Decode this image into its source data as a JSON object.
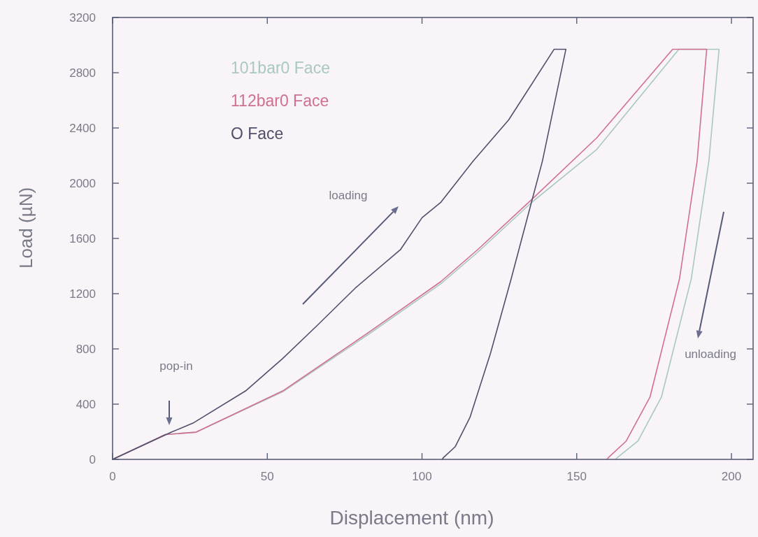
{
  "chart_data": {
    "type": "line",
    "xlabel": "Displacement (nm)",
    "ylabel": "Load (µN)",
    "xlim": [
      0,
      207
    ],
    "ylim": [
      0,
      3200
    ],
    "xticks": [
      0,
      50,
      100,
      150,
      200
    ],
    "yticks": [
      0,
      400,
      800,
      1200,
      1600,
      2000,
      2400,
      2800,
      3200
    ],
    "grid": false,
    "legend": "top left",
    "marker": "none",
    "line_style": "solid",
    "annotations": [
      "pop-in",
      "loading",
      "unloading"
    ],
    "series": [
      {
        "name": "101bar0 Face",
        "color": "#a8c8c0",
        "x": [
          0,
          17,
          27,
          55,
          83,
          106,
          118,
          135.5,
          156.5,
          183,
          196,
          192.7,
          187,
          177.4,
          169.8,
          163.2,
          162.5
        ],
        "values": [
          0,
          180,
          197,
          490,
          910,
          1270,
          1500,
          1862,
          2245,
          2970,
          2970,
          2159,
          1306,
          453,
          133,
          15,
          0
        ]
      },
      {
        "name": "112bar0 Face",
        "color": "#d07090",
        "x": [
          0,
          17,
          27,
          55,
          83,
          106,
          118,
          135.5,
          156.5,
          181,
          192,
          188.9,
          183.2,
          173.7,
          166,
          160.3,
          159.8
        ],
        "values": [
          0,
          180,
          197,
          496,
          923,
          1286,
          1519,
          1883,
          2329,
          2970,
          2970,
          2159,
          1306,
          453,
          133,
          15,
          0
        ]
      },
      {
        "name": "O Face",
        "color": "#50506a",
        "x": [
          0,
          19,
          26,
          43,
          55,
          66,
          78.5,
          93,
          100,
          106,
          116.5,
          128,
          142.7,
          146.5,
          138.9,
          135.1,
          128.8,
          122.2,
          115.5,
          110.7,
          107,
          106.5
        ],
        "values": [
          0,
          197,
          263,
          496,
          731,
          967,
          1242,
          1518,
          1750,
          1860,
          2159,
          2458,
          2970,
          2970,
          2159,
          1839,
          1306,
          773,
          304,
          91,
          15,
          0
        ]
      }
    ]
  }
}
